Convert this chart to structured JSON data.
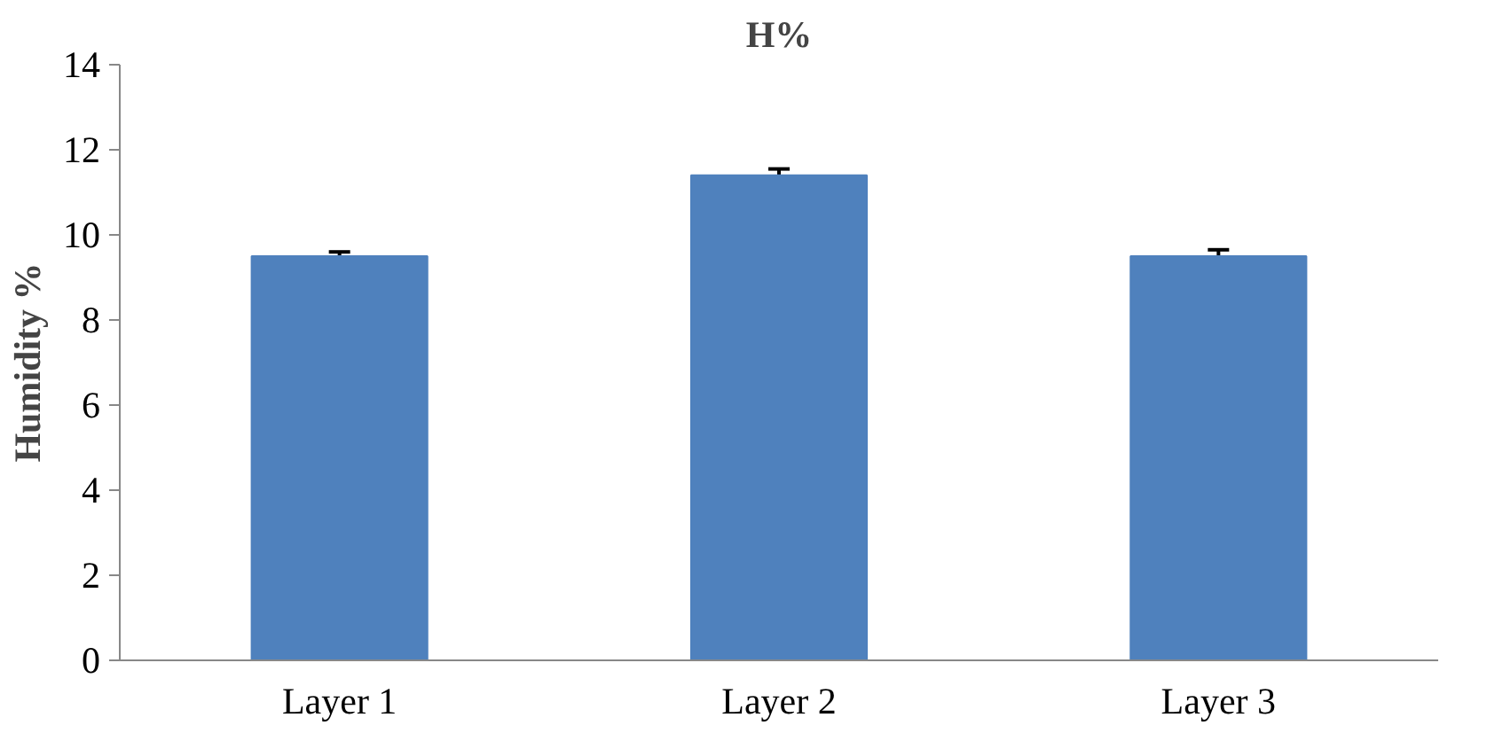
{
  "chart_data": {
    "type": "bar",
    "title": "H%",
    "ylabel": "Humidity %",
    "categories": [
      "Layer 1",
      "Layer 2",
      "Layer 3"
    ],
    "values": [
      9.5,
      11.4,
      9.5
    ],
    "errors": [
      0.1,
      0.15,
      0.15
    ],
    "color": "#4f81bd",
    "ylim": [
      0,
      14
    ],
    "yticks": [
      0,
      2,
      4,
      6,
      8,
      10,
      12,
      14
    ],
    "grid": false
  }
}
